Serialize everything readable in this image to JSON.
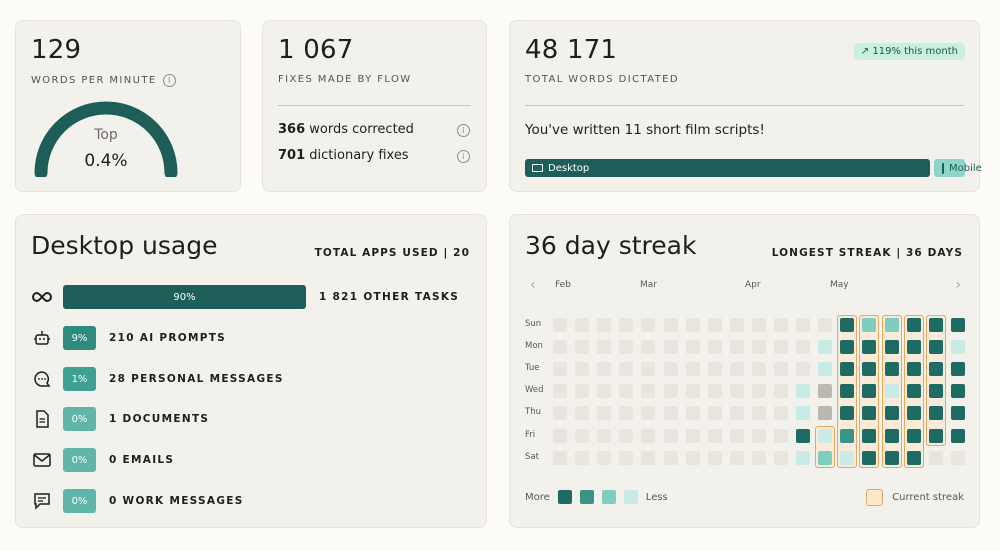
{
  "wpm": {
    "value": "129",
    "caption": "WORDS PER MINUTE",
    "gauge_top": "Top",
    "gauge_pct": "0.4%",
    "gauge_fraction": 1.0
  },
  "fixes": {
    "value": "1 067",
    "caption": "FIXES MADE BY FLOW",
    "rows": [
      {
        "num": "366",
        "text": "words corrected"
      },
      {
        "num": "701",
        "text": "dictionary fixes"
      }
    ]
  },
  "total": {
    "value": "48 171",
    "caption": "TOTAL WORDS DICTATED",
    "badge": "119% this month",
    "message": "You've written 11 short film scripts!",
    "desktop_label": "Desktop",
    "mobile_label": "Mobile",
    "desktop_fraction": 0.93
  },
  "usage": {
    "title": "Desktop usage",
    "total_apps": "TOTAL APPS USED | 20",
    "rows": [
      {
        "icon": "infinity-icon",
        "pct": "90%",
        "label": "1 821 OTHER TASKS",
        "fraction": 0.9,
        "color": "#1d5e58"
      },
      {
        "icon": "robot-icon",
        "pct": "9%",
        "label": "210 AI PROMPTS",
        "fraction": 0.09,
        "color": "#2f8a7f"
      },
      {
        "icon": "chat-bubble-icon",
        "pct": "1%",
        "label": "28 PERSONAL MESSAGES",
        "fraction": 0.01,
        "color": "#3fa193"
      },
      {
        "icon": "document-icon",
        "pct": "0%",
        "label": "1 DOCUMENTS",
        "fraction": 0,
        "color": "#5fb5a8"
      },
      {
        "icon": "mail-icon",
        "pct": "0%",
        "label": "0 EMAILS",
        "fraction": 0,
        "color": "#5fb5a8"
      },
      {
        "icon": "message-icon",
        "pct": "0%",
        "label": "0 WORK MESSAGES",
        "fraction": 0,
        "color": "#5fb5a8"
      }
    ]
  },
  "streak": {
    "title": "36 day streak",
    "longest": "LONGEST STREAK | 36 DAYS",
    "months": [
      "Feb",
      "Mar",
      "Apr",
      "May"
    ],
    "days": [
      "Sun",
      "Mon",
      "Tue",
      "Wed",
      "Thu",
      "Fri",
      "Sat"
    ],
    "legend_more": "More",
    "legend_less": "Less",
    "legend_current": "Current streak",
    "colors": {
      "0": "#e8e5df",
      "1": "#c8ebe5",
      "2": "#7fcdbf",
      "3": "#3a9587",
      "4": "#1d6b62",
      "g": "#bdb8ad"
    },
    "grid": [
      [
        0,
        0,
        0,
        0,
        0,
        0,
        0,
        0,
        0,
        0,
        0,
        0,
        0,
        4,
        2,
        2,
        4,
        4,
        4
      ],
      [
        0,
        0,
        0,
        0,
        0,
        0,
        0,
        0,
        0,
        0,
        0,
        0,
        1,
        4,
        4,
        4,
        4,
        4,
        1
      ],
      [
        0,
        0,
        0,
        0,
        0,
        0,
        0,
        0,
        0,
        0,
        0,
        0,
        1,
        4,
        4,
        4,
        4,
        4,
        4
      ],
      [
        0,
        0,
        0,
        0,
        0,
        0,
        0,
        0,
        0,
        0,
        0,
        1,
        "g",
        4,
        4,
        1,
        4,
        4,
        4
      ],
      [
        0,
        0,
        0,
        0,
        0,
        0,
        0,
        0,
        0,
        0,
        0,
        1,
        "g",
        4,
        4,
        4,
        4,
        4,
        4
      ],
      [
        0,
        0,
        0,
        0,
        0,
        0,
        0,
        0,
        0,
        0,
        0,
        4,
        1,
        3,
        4,
        4,
        4,
        4,
        4
      ],
      [
        0,
        0,
        0,
        0,
        0,
        0,
        0,
        0,
        0,
        0,
        0,
        1,
        2,
        1,
        4,
        4,
        4,
        0,
        0
      ]
    ]
  }
}
